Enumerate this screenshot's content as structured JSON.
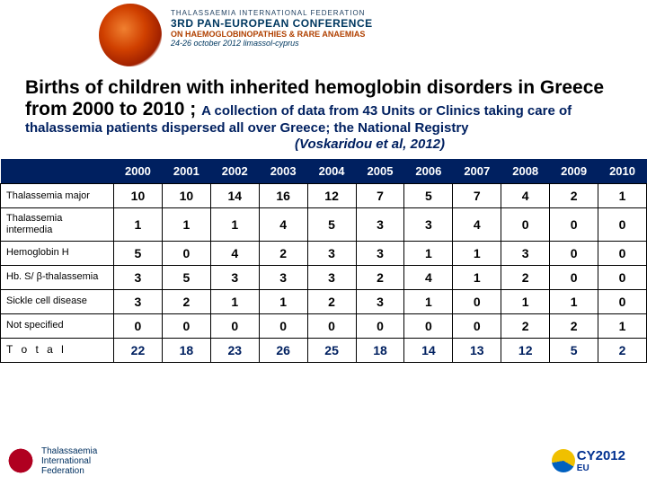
{
  "banner": {
    "line1": "THALASSAEMIA INTERNATIONAL FEDERATION",
    "line2": "3RD PAN-EUROPEAN CONFERENCE",
    "line3": "ON HAEMOGLOBINOPATHIES & RARE ANAEMIAS",
    "line4": "24-26 october 2012 limassol-cyprus"
  },
  "title": {
    "main": "Births of children with inherited hemoglobin disorders in Greece from 2000 to 2010 ; ",
    "sub_dark": "A collection of data from 43 Units or Clinics taking care of thalassemia  patients dispersed all over Greece; the National Registry",
    "citation": "(Voskaridou et al, 2012)"
  },
  "table": {
    "type": "table",
    "header_bg": "#002060",
    "header_fg": "#ffffff",
    "border_color": "#000000",
    "total_color": "#002060",
    "columns": [
      "",
      "2000",
      "2001",
      "2002",
      "2003",
      "2004",
      "2005",
      "2006",
      "2007",
      "2008",
      "2009",
      "2010"
    ],
    "rows": [
      {
        "label": "Thalassemia major",
        "vals": [
          10,
          10,
          14,
          16,
          12,
          7,
          5,
          7,
          4,
          2,
          1
        ]
      },
      {
        "label": "Thalassemia intermedia",
        "vals": [
          1,
          1,
          1,
          4,
          5,
          3,
          3,
          4,
          0,
          0,
          0
        ]
      },
      {
        "label": "Hemoglobin H",
        "vals": [
          5,
          0,
          4,
          2,
          3,
          3,
          1,
          1,
          3,
          0,
          0
        ]
      },
      {
        "label": "Hb. S/\nβ-thalassemia",
        "vals": [
          3,
          5,
          3,
          3,
          3,
          2,
          4,
          1,
          2,
          0,
          0
        ]
      },
      {
        "label": "Sickle cell disease",
        "vals": [
          3,
          2,
          1,
          1,
          2,
          3,
          1,
          0,
          1,
          1,
          0
        ]
      },
      {
        "label": "Not specified",
        "vals": [
          0,
          0,
          0,
          0,
          0,
          0,
          0,
          0,
          2,
          2,
          1
        ]
      },
      {
        "label": "T o t a l",
        "vals": [
          22,
          18,
          23,
          26,
          25,
          18,
          14,
          13,
          12,
          5,
          2
        ],
        "total": true
      }
    ]
  },
  "footer": {
    "left1": "Thalassaemia",
    "left2": "International",
    "left3": "Federation",
    "right": "CY2012",
    "right2": "EU"
  }
}
